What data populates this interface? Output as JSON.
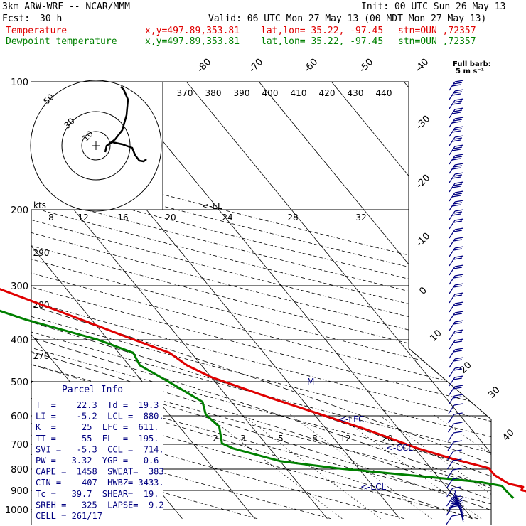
{
  "header": {
    "model": "3km ARW-WRF -- NCAR/MMM",
    "init": "Init: 00 UTC Sun 26 May 13",
    "fcst_label": "Fcst:",
    "fcst_value": "30 h",
    "valid": "Valid: 06 UTC Mon 27 May 13 (00 MDT Mon 27 May 13)",
    "temp_label": "Temperature",
    "dew_label": "Dewpoint temperature",
    "xy": "x,y=497.89,353.81",
    "latlon": "lat,lon= 35.22, -97.45",
    "stn": "stn=OUN ,72357"
  },
  "barb_legend": {
    "line1": "Full barb:",
    "line2": "5 m s⁻¹"
  },
  "hodograph": {
    "ring_labels": [
      "50",
      "30",
      "10"
    ],
    "units": "kts"
  },
  "theta_labels": [
    "370",
    "380",
    "390",
    "400",
    "410",
    "420",
    "430",
    "440"
  ],
  "theta_lower_labels": [
    "290",
    "280",
    "270"
  ],
  "mixing_top_labels": [
    "8",
    "12",
    "16",
    "20",
    "24",
    "28",
    "32"
  ],
  "mixing_lower_labels": [
    "2",
    "3",
    "5",
    "8",
    "12",
    "20"
  ],
  "level_markers": {
    "el": "<-EL",
    "lfc": "<-LFC",
    "ccl": "<-CCL",
    "lcl": "<-LCL",
    "m": "M"
  },
  "parcel": {
    "title": "Parcel Info",
    "rows": [
      "T  =    22.3  Td =  19.3",
      "LI =    -5.2  LCL =  880.",
      "K  =     25  LFC =  611.",
      "TT =     55  EL  =  195.",
      "SVI =   -5.3  CCL =  714.",
      "PW =   3.32  YGP =   0.6",
      "CAPE =  1458  SWEAT=  383",
      "CIN =   -407  HWBZ= 3433.",
      "Tc =   39.7  SHEAR=  19.",
      "SREH =   325  LAPSE=  9.2",
      "CELL = 261/17"
    ]
  },
  "colors": {
    "temperature": "#e00000",
    "dewpoint": "#008000",
    "info": "#000080",
    "barbs": "#000080"
  },
  "chart_data": {
    "type": "line",
    "title": "",
    "xlabel": "",
    "ylabel": "",
    "y_axis": "pressure (hPa), log scale",
    "pressure_ticks": [
      100,
      200,
      300,
      400,
      500,
      600,
      700,
      800,
      900,
      1000
    ],
    "skewed_temperature_ticks": [
      -80,
      -70,
      -60,
      -50,
      -40,
      -30,
      -20,
      -10,
      0,
      10,
      20,
      30,
      40
    ],
    "series": [
      {
        "name": "Temperature",
        "color": "#e00000",
        "points": [
          {
            "p": 940,
            "t": 21.3
          },
          {
            "p": 930,
            "t": 21.0
          },
          {
            "p": 915,
            "t": 21.5
          },
          {
            "p": 900,
            "t": 20.0
          },
          {
            "p": 885,
            "t": 20.6
          },
          {
            "p": 870,
            "t": 19.0
          },
          {
            "p": 830,
            "t": 18.0
          },
          {
            "p": 800,
            "t": 18.0
          },
          {
            "p": 760,
            "t": 14.0
          },
          {
            "p": 720,
            "t": 10.5
          },
          {
            "p": 650,
            "t": 5.5
          },
          {
            "p": 600,
            "t": 1.0
          },
          {
            "p": 550,
            "t": -4.0
          },
          {
            "p": 490,
            "t": -10.0
          },
          {
            "p": 460,
            "t": -12.0
          },
          {
            "p": 430,
            "t": -13.0
          },
          {
            "p": 400,
            "t": -16.5
          },
          {
            "p": 350,
            "t": -22.7
          },
          {
            "p": 300,
            "t": -30.0
          },
          {
            "p": 260,
            "t": -37.2
          },
          {
            "p": 230,
            "t": -43.5
          },
          {
            "p": 210,
            "t": -49.5
          },
          {
            "p": 195,
            "t": -54.5
          },
          {
            "p": 185,
            "t": -55.0
          },
          {
            "p": 170,
            "t": -56.0
          },
          {
            "p": 150,
            "t": -59.5
          },
          {
            "p": 130,
            "t": -63.5
          },
          {
            "p": 115,
            "t": -64.5
          },
          {
            "p": 103,
            "t": -65.0
          }
        ]
      },
      {
        "name": "Dewpoint temperature",
        "color": "#008000",
        "points": [
          {
            "p": 940,
            "t": 18.0
          },
          {
            "p": 900,
            "t": 17.8
          },
          {
            "p": 880,
            "t": 17.8
          },
          {
            "p": 860,
            "t": 15.0
          },
          {
            "p": 830,
            "t": 6.0
          },
          {
            "p": 800,
            "t": -3.0
          },
          {
            "p": 770,
            "t": -10.0
          },
          {
            "p": 720,
            "t": -15.0
          },
          {
            "p": 700,
            "t": -16.0
          },
          {
            "p": 640,
            "t": -14.5
          },
          {
            "p": 600,
            "t": -15.0
          },
          {
            "p": 560,
            "t": -14.0
          },
          {
            "p": 500,
            "t": -16.5
          },
          {
            "p": 460,
            "t": -18.5
          },
          {
            "p": 430,
            "t": -18.0
          },
          {
            "p": 400,
            "t": -21.5
          },
          {
            "p": 360,
            "t": -29.0
          },
          {
            "p": 320,
            "t": -35.5
          },
          {
            "p": 300,
            "t": -39.5
          },
          {
            "p": 260,
            "t": -48.0
          },
          {
            "p": 230,
            "t": -53.5
          },
          {
            "p": 200,
            "t": -60.0
          },
          {
            "p": 175,
            "t": -67.0
          },
          {
            "p": 150,
            "t": -73.0
          },
          {
            "p": 130,
            "t": -75.0
          },
          {
            "p": 115,
            "t": -74.5
          },
          {
            "p": 100,
            "t": -75.0
          }
        ]
      }
    ],
    "grid": true,
    "legend": "top-left"
  }
}
